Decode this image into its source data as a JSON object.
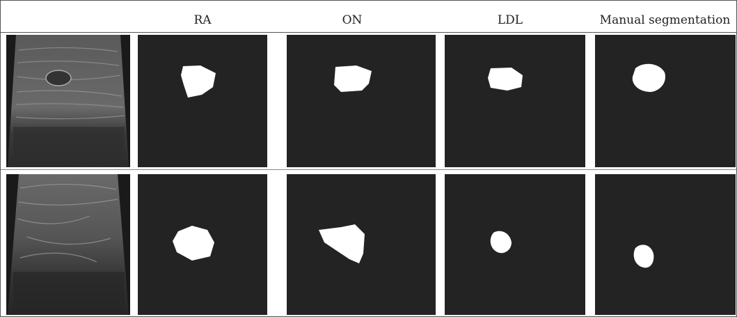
{
  "columns": [
    {
      "key": "input",
      "title": ""
    },
    {
      "key": "ra",
      "title": "RA"
    },
    {
      "key": "on",
      "title": "ON"
    },
    {
      "key": "ldl",
      "title": "LDL"
    },
    {
      "key": "manual",
      "title": "Manual segmentation"
    }
  ],
  "rows": [
    {
      "name": "row-1"
    },
    {
      "name": "row-2"
    }
  ],
  "colors": {
    "panel_background": "#232323",
    "mask": "#ffffff",
    "border": "#555555"
  }
}
